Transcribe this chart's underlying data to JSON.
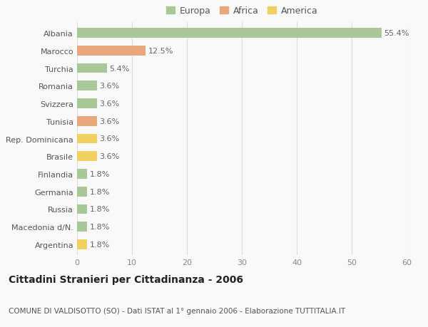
{
  "categories": [
    "Albania",
    "Marocco",
    "Turchia",
    "Romania",
    "Svizzera",
    "Tunisia",
    "Rep. Dominicana",
    "Brasile",
    "Finlandia",
    "Germania",
    "Russia",
    "Macedonia d/N.",
    "Argentina"
  ],
  "values": [
    55.4,
    12.5,
    5.4,
    3.6,
    3.6,
    3.6,
    3.6,
    3.6,
    1.8,
    1.8,
    1.8,
    1.8,
    1.8
  ],
  "continents": [
    "Europa",
    "Africa",
    "Europa",
    "Europa",
    "Europa",
    "Africa",
    "America",
    "America",
    "Europa",
    "Europa",
    "Europa",
    "Europa",
    "America"
  ],
  "colors": {
    "Europa": "#a8c897",
    "Africa": "#e8a87c",
    "America": "#f0d060"
  },
  "legend_order": [
    "Europa",
    "Africa",
    "America"
  ],
  "xlim": [
    0,
    60
  ],
  "xticks": [
    0,
    10,
    20,
    30,
    40,
    50,
    60
  ],
  "title": "Cittadini Stranieri per Cittadinanza - 2006",
  "subtitle": "COMUNE DI VALDISOTTO (SO) - Dati ISTAT al 1° gennaio 2006 - Elaborazione TUTTITALIA.IT",
  "background_color": "#f9f9f9",
  "bar_height": 0.55,
  "label_fontsize": 8,
  "title_fontsize": 10,
  "subtitle_fontsize": 7.5,
  "tick_fontsize": 8,
  "legend_fontsize": 9
}
